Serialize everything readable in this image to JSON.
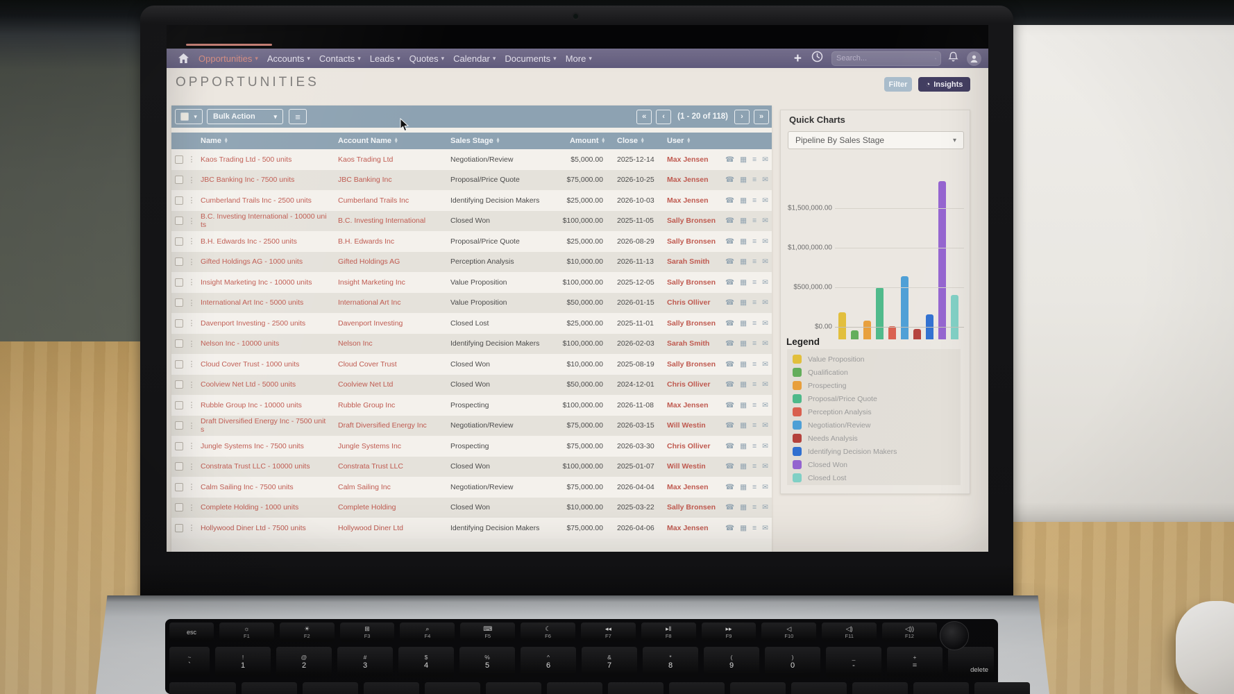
{
  "nav": {
    "items": [
      {
        "label": "Opportunities",
        "active": true
      },
      {
        "label": "Accounts",
        "active": false
      },
      {
        "label": "Contacts",
        "active": false
      },
      {
        "label": "Leads",
        "active": false
      },
      {
        "label": "Quotes",
        "active": false
      },
      {
        "label": "Calendar",
        "active": false
      },
      {
        "label": "Documents",
        "active": false
      },
      {
        "label": "More",
        "active": false
      }
    ],
    "search_placeholder": "Search..."
  },
  "page": {
    "title": "OPPORTUNITIES",
    "filter_button": "Filter",
    "insights_button": "Insights"
  },
  "toolbar": {
    "bulk_action": "Bulk Action",
    "pagination": {
      "first": "«",
      "prev": "‹",
      "status": "(1 - 20 of 118)",
      "next": "›",
      "last": "»"
    }
  },
  "icons": {
    "caret": "▾",
    "kebab": "⋮",
    "phone": "☎",
    "calendar": "▦",
    "list": "≡",
    "mail": "✉",
    "sort_up": "▴",
    "sort_down": "▾",
    "plus": "+",
    "pie": "◔",
    "list_view": "≡"
  },
  "table": {
    "columns": [
      "Name",
      "Account Name",
      "Sales Stage",
      "Amount",
      "Close",
      "User"
    ],
    "rows": [
      {
        "name": "Kaos Trading Ltd - 500 units",
        "account": "Kaos Trading Ltd",
        "stage": "Negotiation/Review",
        "amount": "$5,000.00",
        "close": "2025-12-14",
        "user": "Max Jensen"
      },
      {
        "name": "JBC Banking Inc - 7500 units",
        "account": "JBC Banking Inc",
        "stage": "Proposal/Price Quote",
        "amount": "$75,000.00",
        "close": "2026-10-25",
        "user": "Max Jensen"
      },
      {
        "name": "Cumberland Trails Inc - 2500 units",
        "account": "Cumberland Trails Inc",
        "stage": "Identifying Decision Makers",
        "amount": "$25,000.00",
        "close": "2026-10-03",
        "user": "Max Jensen"
      },
      {
        "name": "B.C. Investing International - 10000 units",
        "account": "B.C. Investing International",
        "stage": "Closed Won",
        "amount": "$100,000.00",
        "close": "2025-11-05",
        "user": "Sally Bronsen"
      },
      {
        "name": "B.H. Edwards Inc - 2500 units",
        "account": "B.H. Edwards Inc",
        "stage": "Proposal/Price Quote",
        "amount": "$25,000.00",
        "close": "2026-08-29",
        "user": "Sally Bronsen"
      },
      {
        "name": "Gifted Holdings AG - 1000 units",
        "account": "Gifted Holdings AG",
        "stage": "Perception Analysis",
        "amount": "$10,000.00",
        "close": "2026-11-13",
        "user": "Sarah Smith"
      },
      {
        "name": "Insight Marketing Inc - 10000 units",
        "account": "Insight Marketing Inc",
        "stage": "Value Proposition",
        "amount": "$100,000.00",
        "close": "2025-12-05",
        "user": "Sally Bronsen"
      },
      {
        "name": "International Art Inc - 5000 units",
        "account": "International Art Inc",
        "stage": "Value Proposition",
        "amount": "$50,000.00",
        "close": "2026-01-15",
        "user": "Chris Olliver"
      },
      {
        "name": "Davenport Investing - 2500 units",
        "account": "Davenport Investing",
        "stage": "Closed Lost",
        "amount": "$25,000.00",
        "close": "2025-11-01",
        "user": "Sally Bronsen"
      },
      {
        "name": "Nelson Inc - 10000 units",
        "account": "Nelson Inc",
        "stage": "Identifying Decision Makers",
        "amount": "$100,000.00",
        "close": "2026-02-03",
        "user": "Sarah Smith"
      },
      {
        "name": "Cloud Cover Trust - 1000 units",
        "account": "Cloud Cover Trust",
        "stage": "Closed Won",
        "amount": "$10,000.00",
        "close": "2025-08-19",
        "user": "Sally Bronsen"
      },
      {
        "name": "Coolview Net Ltd - 5000 units",
        "account": "Coolview Net Ltd",
        "stage": "Closed Won",
        "amount": "$50,000.00",
        "close": "2024-12-01",
        "user": "Chris Olliver"
      },
      {
        "name": "Rubble Group Inc - 10000 units",
        "account": "Rubble Group Inc",
        "stage": "Prospecting",
        "amount": "$100,000.00",
        "close": "2026-11-08",
        "user": "Max Jensen"
      },
      {
        "name": "Draft Diversified Energy Inc - 7500 units",
        "account": "Draft Diversified Energy Inc",
        "stage": "Negotiation/Review",
        "amount": "$75,000.00",
        "close": "2026-03-15",
        "user": "Will Westin"
      },
      {
        "name": "Jungle Systems Inc - 7500 units",
        "account": "Jungle Systems Inc",
        "stage": "Prospecting",
        "amount": "$75,000.00",
        "close": "2026-03-30",
        "user": "Chris Olliver"
      },
      {
        "name": "Constrata Trust LLC - 10000 units",
        "account": "Constrata Trust LLC",
        "stage": "Closed Won",
        "amount": "$100,000.00",
        "close": "2025-01-07",
        "user": "Will Westin"
      },
      {
        "name": "Calm Sailing Inc - 7500 units",
        "account": "Calm Sailing Inc",
        "stage": "Negotiation/Review",
        "amount": "$75,000.00",
        "close": "2026-04-04",
        "user": "Max Jensen"
      },
      {
        "name": "Complete Holding - 1000 units",
        "account": "Complete Holding",
        "stage": "Closed Won",
        "amount": "$10,000.00",
        "close": "2025-03-22",
        "user": "Sally Bronsen"
      },
      {
        "name": "Hollywood Diner Ltd - 7500 units",
        "account": "Hollywood Diner Ltd",
        "stage": "Identifying Decision Makers",
        "amount": "$75,000.00",
        "close": "2026-04-06",
        "user": "Max Jensen"
      }
    ]
  },
  "quick_charts": {
    "title": "Quick Charts",
    "selector_value": "Pipeline By Sales Stage",
    "legend_title": "Legend"
  },
  "chart_data": {
    "type": "bar",
    "title": "Pipeline By Sales Stage",
    "categories": [
      "Value Proposition",
      "Qualification",
      "Prospecting",
      "Proposal/Price Quote",
      "Perception Analysis",
      "Negotiation/Review",
      "Needs Analysis",
      "Identifying Decision Makers",
      "Closed Won",
      "Closed Lost"
    ],
    "values": [
      340000,
      110000,
      240000,
      660000,
      170000,
      800000,
      130000,
      320000,
      2000000,
      560000
    ],
    "colors": [
      "#e2bf3c",
      "#63ad5b",
      "#e89f3c",
      "#4eb98a",
      "#d9604f",
      "#4d9fd6",
      "#b4413c",
      "#2f6fd0",
      "#9463cf",
      "#7fd0c5"
    ],
    "y_ticks": [
      "$0.00",
      "$500,000.00",
      "$1,000,000.00",
      "$1,500,000.00"
    ],
    "y_tick_values": [
      0,
      500000,
      1000000,
      1500000
    ],
    "ylim": [
      0,
      2100000
    ],
    "grid": true,
    "legend_position": "bottom",
    "xlabel": "",
    "ylabel": ""
  },
  "keyboard": {
    "esc": "esc",
    "function_keys": [
      {
        "glyph": "☼",
        "label": "F1",
        "icon": "brightness-low-icon"
      },
      {
        "glyph": "☀",
        "label": "F2",
        "icon": "brightness-high-icon"
      },
      {
        "glyph": "⊞",
        "label": "F3",
        "icon": "mission-control-icon"
      },
      {
        "glyph": "⌕",
        "label": "F4",
        "icon": "spotlight-icon"
      },
      {
        "glyph": "⌨",
        "label": "F5",
        "icon": "dictation-icon"
      },
      {
        "glyph": "☾",
        "label": "F6",
        "icon": "focus-icon"
      },
      {
        "glyph": "◂◂",
        "label": "F7",
        "icon": "rewind-icon"
      },
      {
        "glyph": "▸‖",
        "label": "F8",
        "icon": "play-pause-icon"
      },
      {
        "glyph": "▸▸",
        "label": "F9",
        "icon": "fast-forward-icon"
      },
      {
        "glyph": "◁",
        "label": "F10",
        "icon": "mute-icon"
      },
      {
        "glyph": "◁)",
        "label": "F11",
        "icon": "volume-down-icon"
      },
      {
        "glyph": "◁))",
        "label": "F12",
        "icon": "volume-up-icon"
      }
    ],
    "number_row": [
      {
        "shift": "~",
        "main": "`"
      },
      {
        "shift": "!",
        "main": "1"
      },
      {
        "shift": "@",
        "main": "2"
      },
      {
        "shift": "#",
        "main": "3"
      },
      {
        "shift": "$",
        "main": "4"
      },
      {
        "shift": "%",
        "main": "5"
      },
      {
        "shift": "^",
        "main": "6"
      },
      {
        "shift": "&",
        "main": "7"
      },
      {
        "shift": "*",
        "main": "8"
      },
      {
        "shift": "(",
        "main": "9"
      },
      {
        "shift": ")",
        "main": "0"
      },
      {
        "shift": "_",
        "main": "-"
      },
      {
        "shift": "+",
        "main": "="
      }
    ],
    "delete_key": "delete"
  }
}
